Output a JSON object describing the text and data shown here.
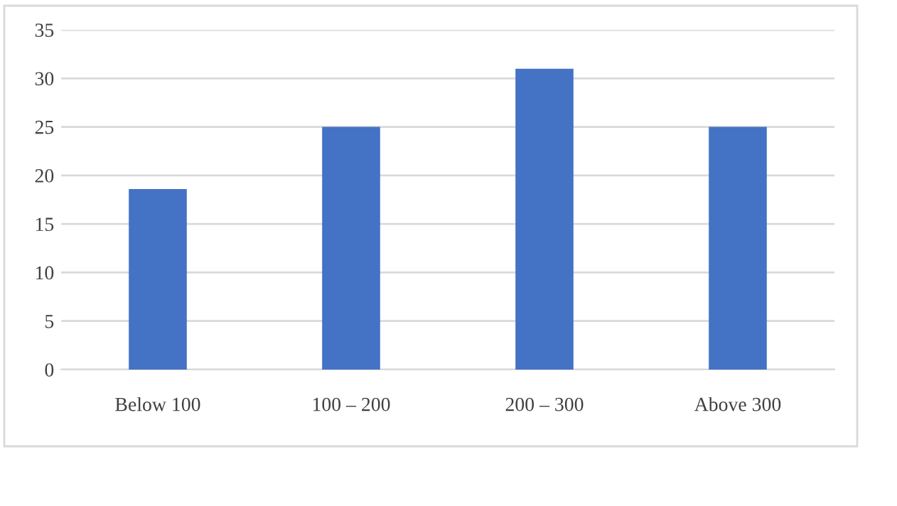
{
  "chart_data": {
    "type": "bar",
    "categories": [
      "Below 100",
      "100 – 200",
      "200 – 300",
      "Above 300"
    ],
    "values": [
      18.6,
      25,
      31,
      25
    ],
    "color": "#4472c4",
    "ylim": [
      0,
      35
    ],
    "yticks": [
      0,
      5,
      10,
      15,
      20,
      25,
      30,
      35
    ],
    "grid": "y"
  }
}
